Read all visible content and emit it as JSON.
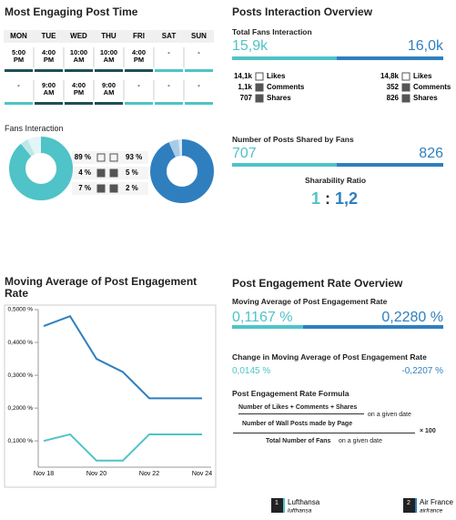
{
  "post_time": {
    "title": "Most Engaging Post Time",
    "days": [
      "MON",
      "TUE",
      "WED",
      "THU",
      "FRI",
      "SAT",
      "SUN"
    ],
    "rows": [
      [
        "5:00 PM",
        "4:00 PM",
        "10:00 AM",
        "10:00 AM",
        "4:00 PM",
        "-",
        "-"
      ],
      [
        "-",
        "9:00 AM",
        "4:00 PM",
        "9:00 AM",
        "-",
        "-",
        "-"
      ]
    ]
  },
  "interaction": {
    "title": "Posts Interaction Overview",
    "total_label": "Total Fans Interaction",
    "total": [
      "15,9k",
      "16,0k"
    ],
    "stats": [
      [
        {
          "value": "14,1k",
          "label": "Likes"
        },
        {
          "value": "1,1k",
          "label": "Comments"
        },
        {
          "value": "707",
          "label": "Shares"
        }
      ],
      [
        {
          "value": "14,8k",
          "label": "Likes"
        },
        {
          "value": "352",
          "label": "Comments"
        },
        {
          "value": "826",
          "label": "Shares"
        }
      ]
    ],
    "shared_label": "Number of Posts Shared by Fans",
    "shared": [
      "707",
      "826"
    ],
    "ratio_label": "Sharability Ratio",
    "ratio": [
      "1",
      ":",
      "1,2"
    ]
  },
  "fans": {
    "title": "Fans Interaction"
  },
  "chart_data": [
    {
      "type": "pie",
      "values": [
        89,
        4,
        7
      ],
      "value_labels": [
        "89 %",
        "4 %",
        "7 %"
      ],
      "colors": [
        "#4fc3c7",
        "#bde8ea",
        "#e3f5f6"
      ]
    },
    {
      "type": "pie",
      "values": [
        93,
        5,
        2
      ],
      "value_labels": [
        "93 %",
        "5 %",
        "2 %"
      ],
      "colors": [
        "#2f7fbf",
        "#a9cbe6",
        "#d8e8f4"
      ]
    },
    {
      "type": "line",
      "title": "Moving Average of Post Engagement Rate",
      "categories": [
        "Nov 18",
        null,
        "Nov 20",
        null,
        "Nov 22",
        null,
        "Nov 24"
      ],
      "series": [
        {
          "name": "Lufthansa",
          "color": "#4fc3c7",
          "values": [
            0.1,
            0.12,
            0.04,
            0.04,
            0.12,
            0.12,
            0.12
          ]
        },
        {
          "name": "Air France",
          "color": "#2f7fbf",
          "values": [
            0.45,
            0.48,
            0.35,
            0.31,
            0.23,
            0.23,
            0.23
          ]
        }
      ],
      "ylim": [
        0.02,
        0.5
      ],
      "yticks": [
        {
          "value": 0.1,
          "label": "0,1000 %"
        },
        {
          "value": 0.2,
          "label": "0,2000 %"
        },
        {
          "value": 0.3,
          "label": "0,3000 %"
        },
        {
          "value": 0.4,
          "label": "0,4000 %"
        },
        {
          "value": 0.5,
          "label": "0,5000 %"
        }
      ]
    }
  ],
  "overview": {
    "title": "Post Engagement Rate Overview",
    "avg_label": "Moving Average of Post Engagement Rate",
    "avg": [
      "0,1167 %",
      "0,2280 %"
    ],
    "change_label": "Change in Moving Average of Post Engagement Rate",
    "change": [
      "0,0145 %",
      "-0,2207 %"
    ],
    "formula_label": "Post Engagement Rate Formula",
    "numerator": "Number of Likes + Comments + Shares",
    "per_date_1": "on a given date",
    "posts": "Number of Wall Posts made by Page",
    "denominator": "Total Number of Fans",
    "per_date_2": "on a given date",
    "times": "× 100"
  },
  "legend": [
    {
      "rank": "1",
      "name": "Lufthansa",
      "handle": "lufthansa"
    },
    {
      "rank": "2",
      "name": "Air France",
      "handle": "airfrance"
    }
  ]
}
